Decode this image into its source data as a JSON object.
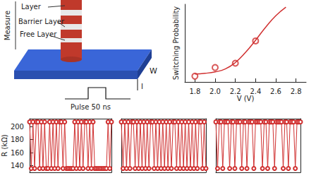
{
  "diagram": {
    "labels": {
      "measure": "Measure",
      "layer": "Layer",
      "barrier": "Barrier Layer",
      "free": "Free Layer",
      "w": "W",
      "i": "I",
      "pulse": "Pulse 50 ns"
    }
  },
  "chart_data": [
    {
      "type": "scatter",
      "x_label": "V (V)",
      "y_label": "Switching Probability",
      "x": [
        1.8,
        2.0,
        2.2,
        2.4
      ],
      "values": [
        0,
        12,
        18,
        49
      ],
      "fit_x": [
        1.8,
        1.9,
        2.0,
        2.1,
        2.2,
        2.3,
        2.4,
        2.5,
        2.6,
        2.7
      ],
      "fit_values": [
        3,
        4,
        6,
        10,
        19,
        33,
        50,
        68,
        84,
        96
      ],
      "xlim": [
        1.7,
        2.9
      ],
      "xticks": [
        1.8,
        {
          "value": 2,
          "label": "2.0"
        },
        2.2,
        2.4,
        2.6,
        2.8
      ],
      "ylim": [
        -8,
        100
      ],
      "tick_labels": "x",
      "color": "#d03030",
      "marker": "circle"
    },
    {
      "type": "line",
      "y_label": "R (kΩ)",
      "xlim": [
        1,
        50
      ],
      "ylim": [
        130,
        212
      ],
      "yticks": [
        140,
        160,
        180,
        200
      ],
      "tick_labels": "y",
      "color": "#d03030",
      "marker": "circle",
      "values": [
        207,
        136,
        207,
        136,
        207,
        207,
        136,
        207,
        136,
        207,
        136,
        136,
        207,
        136,
        207,
        136,
        207,
        136,
        207,
        207,
        136,
        207,
        136,
        136,
        136,
        136,
        136,
        207,
        136,
        207,
        136,
        207,
        136,
        207,
        207,
        136,
        207,
        136,
        207,
        136,
        136,
        136,
        136,
        136,
        136,
        136,
        136,
        207,
        136,
        207
      ]
    },
    {
      "type": "line",
      "xlim": [
        1,
        50
      ],
      "ylim": [
        130,
        212
      ],
      "tick_labels": false,
      "color": "#d03030",
      "marker": "circle",
      "values": [
        207,
        136,
        207,
        136,
        207,
        136,
        207,
        207,
        136,
        207,
        136,
        207,
        136,
        207,
        136,
        207,
        136,
        207,
        207,
        136,
        207,
        136,
        207,
        136,
        207,
        136,
        207,
        136,
        207,
        136,
        207,
        207,
        136,
        207,
        136,
        207,
        136,
        207,
        136,
        207,
        136,
        207,
        136,
        207,
        136,
        207,
        207,
        136,
        207,
        136
      ]
    },
    {
      "type": "line",
      "xlim": [
        1,
        50
      ],
      "ylim": [
        130,
        212
      ],
      "tick_labels": false,
      "color": "#d03030",
      "marker": "circle",
      "values": [
        207,
        136,
        207,
        207,
        136,
        207,
        207,
        207,
        136,
        207,
        207,
        136,
        207,
        207,
        207,
        136,
        207,
        207,
        136,
        207,
        207,
        207,
        136,
        207,
        207,
        207,
        207,
        136,
        207,
        207,
        136,
        207,
        207,
        207,
        136,
        207,
        207,
        207,
        207,
        136,
        207,
        207,
        136,
        207,
        207,
        207,
        136,
        207,
        207,
        207
      ]
    }
  ]
}
